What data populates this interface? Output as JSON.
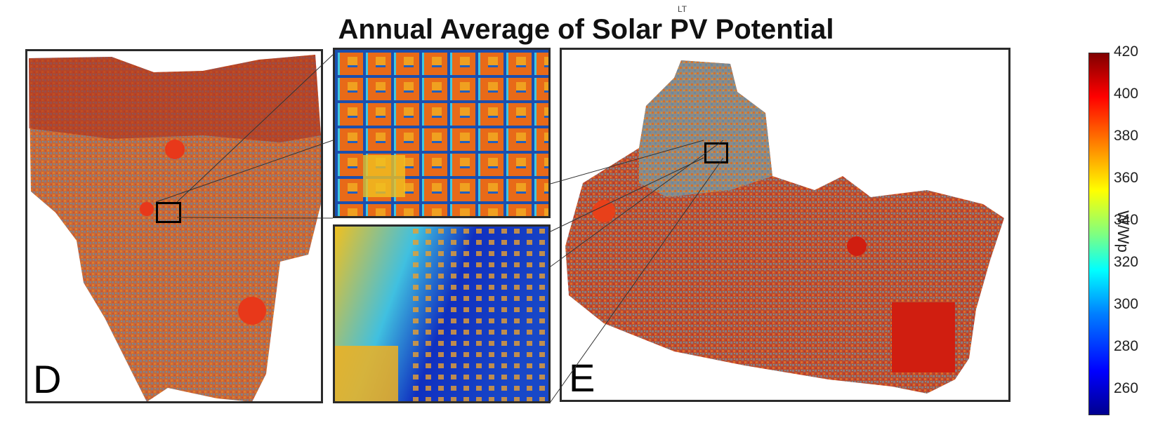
{
  "title": "Annual Average of Solar PV Potential",
  "superscript": "LT",
  "panels": {
    "left_label": "D",
    "right_label": "E"
  },
  "colorbar": {
    "unit": "W/Wp",
    "ticks": [
      "420",
      "400",
      "380",
      "360",
      "340",
      "320",
      "300",
      "280",
      "260"
    ],
    "min": 260,
    "max": 420
  },
  "colors": {
    "high": "#c81e0f",
    "mid": "#f07020",
    "low": "#1e3ca0",
    "mixed": "#b06a4a"
  }
}
